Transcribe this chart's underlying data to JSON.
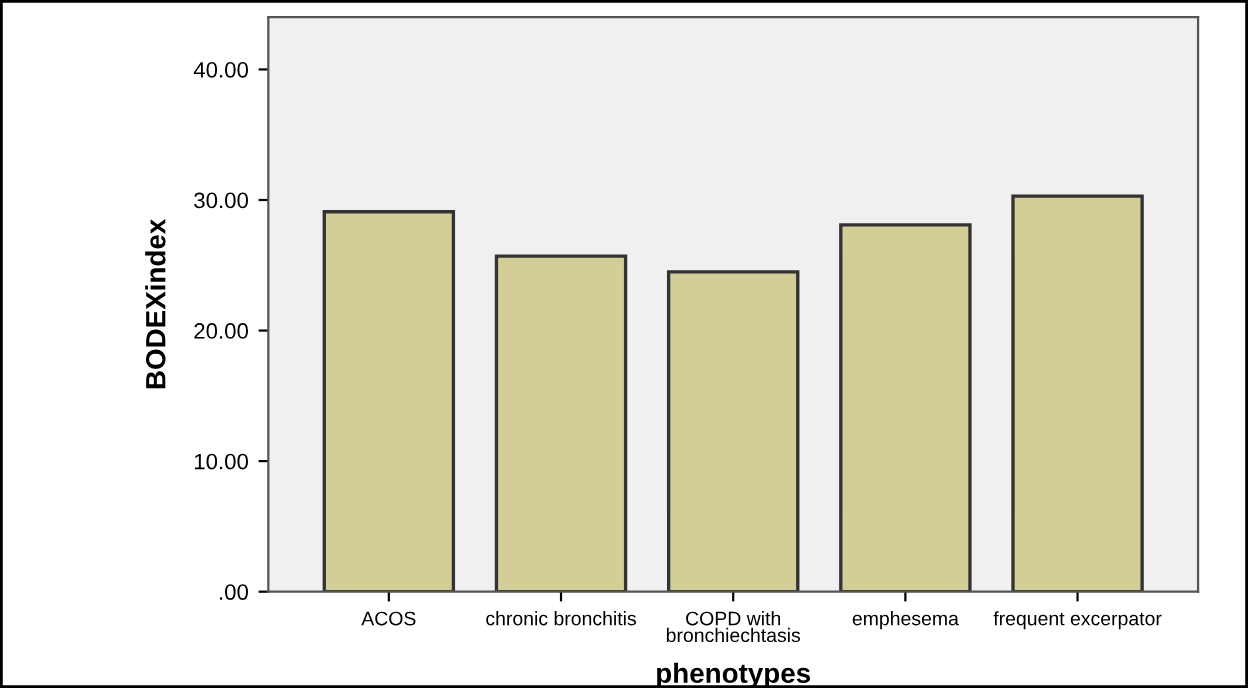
{
  "chart_data": {
    "type": "bar",
    "xlabel": "phenotypes",
    "ylabel": "BODEXindex",
    "categories": [
      "ACOS",
      "chronic bronchitis",
      "COPD with\nbronchiechtasis",
      "emphesema",
      "frequent excerpator"
    ],
    "values": [
      29.1,
      25.7,
      24.5,
      28.1,
      30.3
    ],
    "color": "#d3ce96",
    "ylim": [
      0,
      44
    ],
    "yticks": [
      {
        "value": 0,
        "label": ".00"
      },
      {
        "value": 10,
        "label": "10.00"
      },
      {
        "value": 20,
        "label": "20.00"
      },
      {
        "value": 30,
        "label": "30.00"
      },
      {
        "value": 40,
        "label": "40.00"
      }
    ],
    "grid": false,
    "legend": false
  }
}
